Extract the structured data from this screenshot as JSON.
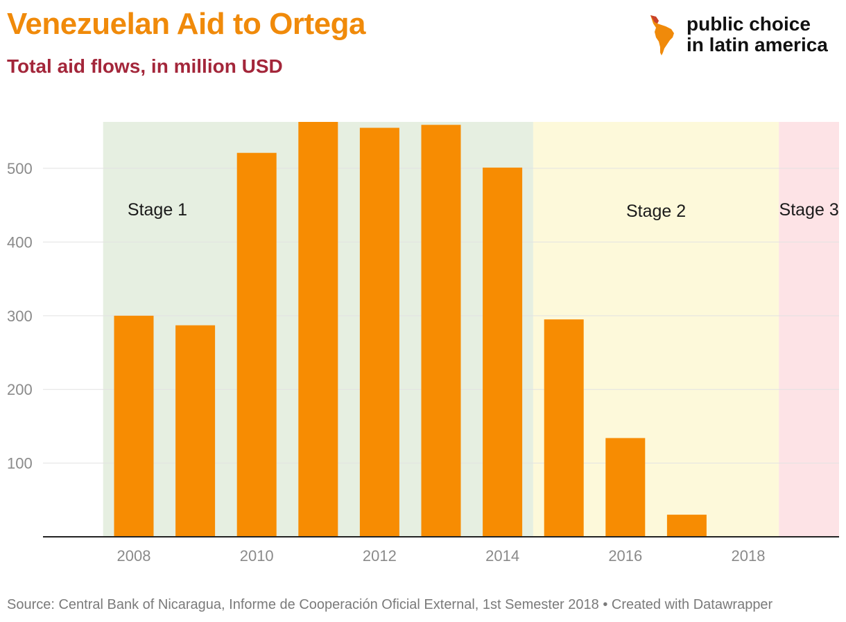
{
  "header": {
    "title": "Venezuelan Aid to Ortega",
    "subtitle": "Total aid flows, in million USD"
  },
  "logo": {
    "line1": "public choice",
    "line2": "in latin america",
    "icon": "latin-america-map-icon"
  },
  "footer": {
    "source": "Source: Central Bank of Nicaragua, Informe de Cooperación Oficial External, 1st Semester 2018 • Created with Datawrapper"
  },
  "colors": {
    "title": "#f08a0a",
    "subtitle": "#a3263a",
    "bar": "#f78c02",
    "stage1": "#e6efe1",
    "stage2": "#fdf9da",
    "stage3": "#fde3e6"
  },
  "chart_data": {
    "type": "bar",
    "title": "Venezuelan Aid to Ortega",
    "ylabel": "Total aid flows, in million USD",
    "xlabel": "",
    "categories": [
      "2008",
      "2009",
      "2010",
      "2011",
      "2012",
      "2013",
      "2014",
      "2015",
      "2016",
      "2017",
      "2018"
    ],
    "values": [
      300,
      287,
      521,
      563,
      555,
      559,
      501,
      295,
      134,
      30,
      0
    ],
    "x_tick_labels": [
      "2008",
      "2010",
      "2012",
      "2014",
      "2016",
      "2018"
    ],
    "y_ticks": [
      100,
      200,
      300,
      400,
      500
    ],
    "ylim": [
      0,
      563
    ],
    "grid": true,
    "stages": [
      {
        "label": "Stage 1",
        "from": 2007.5,
        "to": 2014.5,
        "color": "#e6efe1"
      },
      {
        "label": "Stage 2",
        "from": 2014.5,
        "to": 2018.5,
        "color": "#fdf9da"
      },
      {
        "label": "Stage 3",
        "from": 2018.5,
        "to": 2019.8,
        "color": "#fde3e6"
      }
    ]
  }
}
